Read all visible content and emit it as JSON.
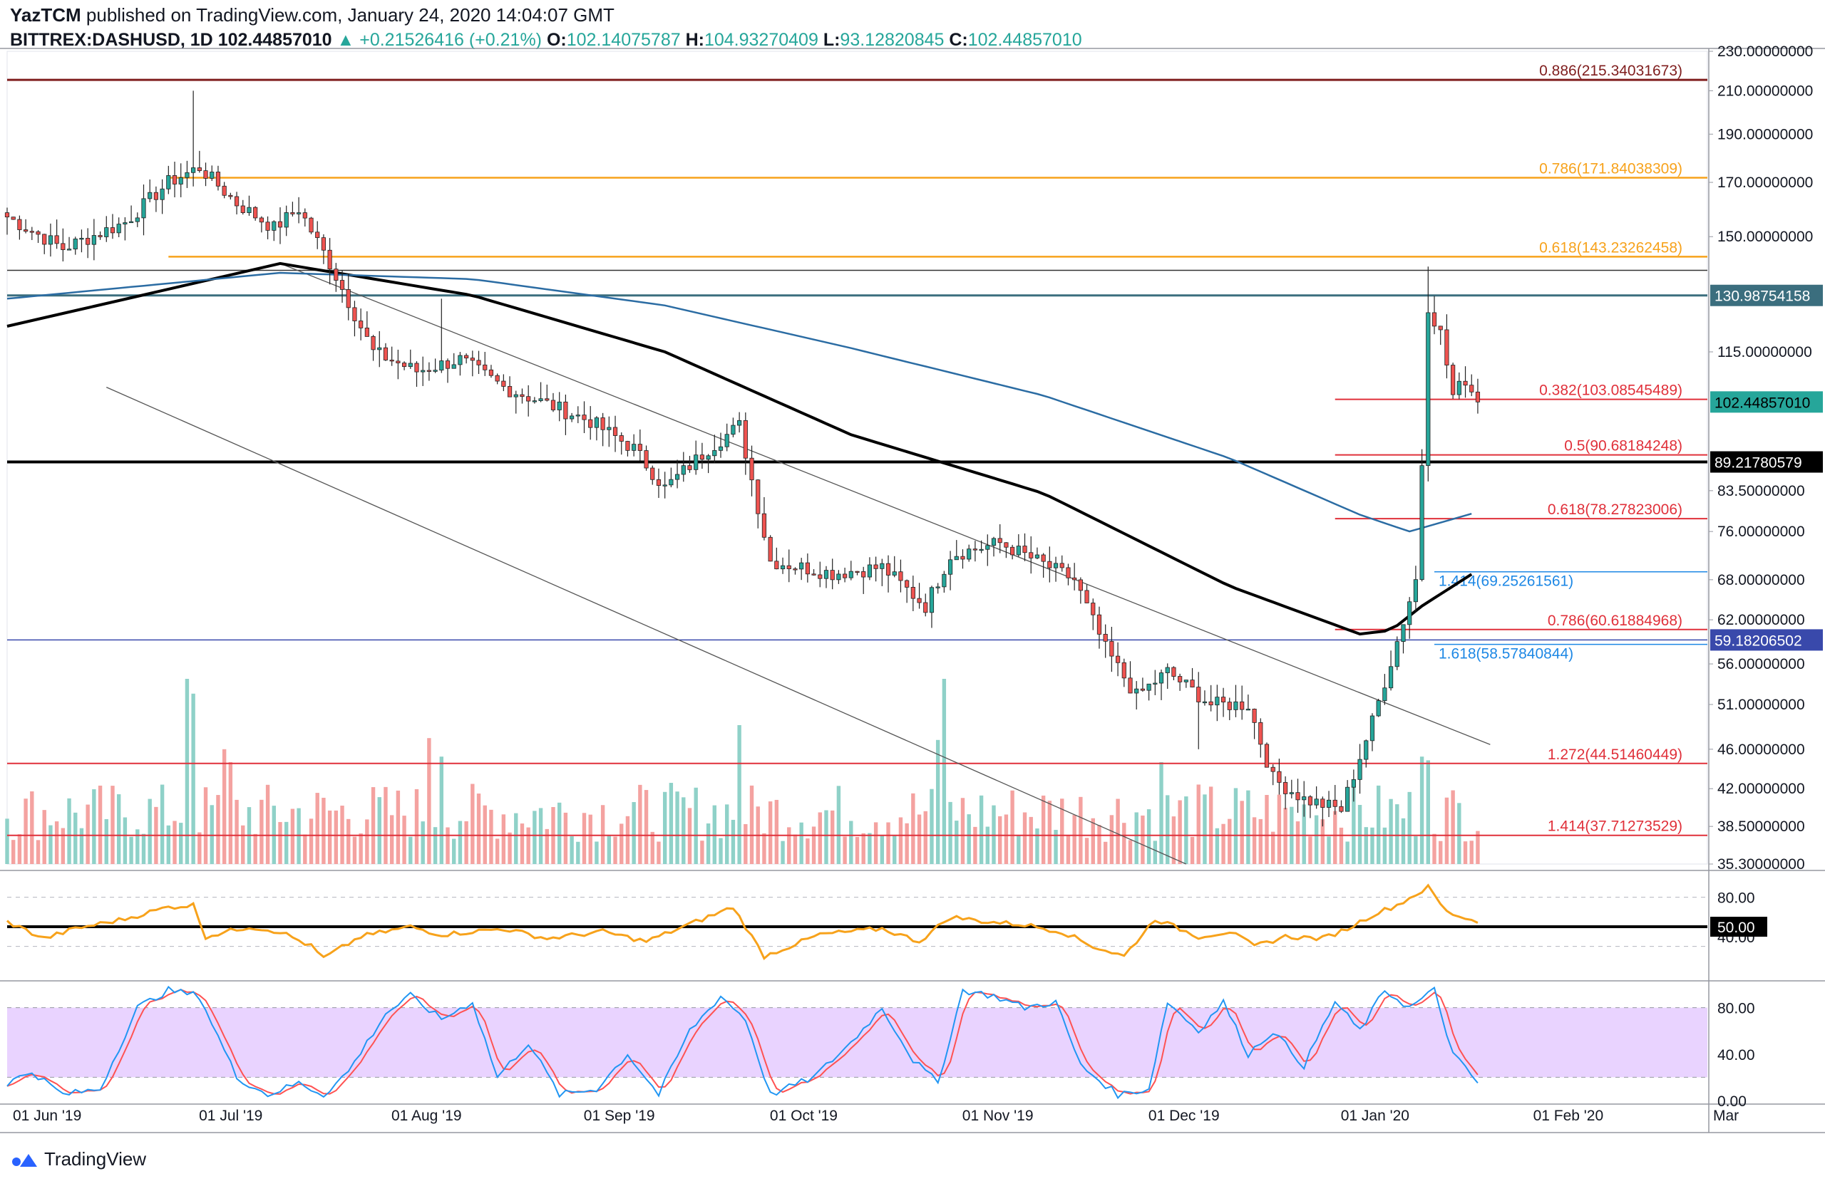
{
  "header": {
    "author": "YazTCM",
    "published_text": "published on TradingView.com, January 24, 2020 14:04:07 GMT",
    "symbol": "BITTREX:DASHUSD, 1D",
    "last": "102.44857010",
    "change": "▲ +0.21526416 (+0.21%)",
    "open_label": "O:",
    "open": "102.14075787",
    "high_label": "H:",
    "high": "104.93270409",
    "low_label": "L:",
    "low": "93.12820845",
    "close_label": "C:",
    "close": "102.44857010"
  },
  "footer": {
    "brand": "TradingView"
  },
  "colors": {
    "bull": "#26a69a",
    "bear": "#ef5350",
    "vol_bull": "#8fd1c8",
    "vol_bear": "#f4a2a0",
    "ma200": "#000000",
    "ma100": "#2b6ca3",
    "fib_dark": "#7f1d1d",
    "fib_orange": "#f7a21b",
    "fib_red": "#e0303a",
    "ext_blue": "#1e88e5",
    "rsi": "#f7a21b",
    "stoch_k": "#2196f3",
    "stoch_d": "#ff5252",
    "stoch_band": "#e1c4ff"
  },
  "chart_data": [
    {
      "type": "candlestick",
      "symbol": "BITTREX:DASHUSD",
      "interval": "1D",
      "scale": "log",
      "ylim": [
        35.3,
        230
      ],
      "x_range": [
        "2019-06-01",
        "2020-03-01"
      ],
      "x_tick_labels": [
        "01 Jun '19",
        "01 Jul '19",
        "01 Aug '19",
        "01 Sep '19",
        "01 Oct '19",
        "01 Nov '19",
        "01 Dec '19",
        "01 Jan '20",
        "01 Feb '20",
        "Mar"
      ],
      "y_tick_labels": [
        "230.00000000",
        "210.00000000",
        "190.00000000",
        "170.00000000",
        "150.00000000",
        "115.00000000",
        "83.50000000",
        "76.00000000",
        "68.00000000",
        "62.00000000",
        "56.00000000",
        "51.00000000",
        "46.00000000",
        "42.00000000",
        "38.50000000",
        "35.30000000"
      ],
      "price_tags": [
        {
          "value": "130.98754158",
          "style": "teal"
        },
        {
          "value": "102.44857010",
          "style": "green"
        },
        {
          "value": "89.21780579",
          "style": "black"
        },
        {
          "value": "59.18206502",
          "style": "blue"
        }
      ],
      "close_anchors": [
        [
          "2019-06-01",
          157
        ],
        [
          "2019-06-10",
          146
        ],
        [
          "2019-06-20",
          155
        ],
        [
          "2019-06-27",
          170
        ],
        [
          "2019-07-02",
          176
        ],
        [
          "2019-07-08",
          162
        ],
        [
          "2019-07-14",
          153
        ],
        [
          "2019-07-18",
          160
        ],
        [
          "2019-07-23",
          141
        ],
        [
          "2019-07-30",
          115
        ],
        [
          "2019-08-06",
          110
        ],
        [
          "2019-08-13",
          113
        ],
        [
          "2019-08-20",
          106
        ],
        [
          "2019-08-27",
          102
        ],
        [
          "2019-09-03",
          98
        ],
        [
          "2019-09-10",
          92
        ],
        [
          "2019-09-15",
          84
        ],
        [
          "2019-09-22",
          92
        ],
        [
          "2019-09-27",
          97
        ],
        [
          "2019-10-02",
          71
        ],
        [
          "2019-10-12",
          69
        ],
        [
          "2019-10-20",
          70
        ],
        [
          "2019-10-27",
          64
        ],
        [
          "2019-10-31",
          72
        ],
        [
          "2019-11-08",
          74
        ],
        [
          "2019-11-14",
          71
        ],
        [
          "2019-11-20",
          68
        ],
        [
          "2019-11-25",
          58
        ],
        [
          "2019-11-30",
          52
        ],
        [
          "2019-12-05",
          55
        ],
        [
          "2019-12-12",
          51
        ],
        [
          "2019-12-18",
          51
        ],
        [
          "2019-12-22",
          43
        ],
        [
          "2019-12-27",
          41
        ],
        [
          "2020-01-02",
          40
        ],
        [
          "2020-01-07",
          49
        ],
        [
          "2020-01-11",
          59
        ],
        [
          "2020-01-14",
          68
        ],
        [
          "2020-01-15",
          89
        ],
        [
          "2020-01-16",
          128
        ],
        [
          "2020-01-18",
          120
        ],
        [
          "2020-01-20",
          104
        ],
        [
          "2020-01-22",
          108
        ],
        [
          "2020-01-24",
          102.45
        ]
      ],
      "extremes": {
        "high": [
          [
            "2019-07-01",
            210
          ],
          [
            "2020-01-16",
            140
          ],
          [
            "2019-08-10",
            130
          ]
        ],
        "low": [
          [
            "2019-12-30",
            38.5
          ],
          [
            "2019-12-10",
            46
          ]
        ]
      },
      "moving_averages": [
        {
          "period": 200,
          "color": "ma200",
          "values": [
            [
              "2019-06-01",
              122
            ],
            [
              "2019-07-15",
              141
            ],
            [
              "2019-08-15",
              131
            ],
            [
              "2019-09-15",
              115
            ],
            [
              "2019-10-15",
              95
            ],
            [
              "2019-11-15",
              83
            ],
            [
              "2019-12-15",
              67
            ],
            [
              "2020-01-05",
              60
            ],
            [
              "2020-01-10",
              60.5
            ],
            [
              "2020-01-15",
              64
            ],
            [
              "2020-01-24",
              69.5
            ]
          ]
        },
        {
          "period": 100,
          "color": "ma100",
          "values": [
            [
              "2019-06-01",
              130
            ],
            [
              "2019-07-15",
              138
            ],
            [
              "2019-08-15",
              136
            ],
            [
              "2019-09-15",
              128
            ],
            [
              "2019-10-15",
              116
            ],
            [
              "2019-11-15",
              104
            ],
            [
              "2019-12-15",
              90
            ],
            [
              "2020-01-05",
              79
            ],
            [
              "2020-01-13",
              76
            ],
            [
              "2020-01-24",
              79.5
            ]
          ]
        }
      ],
      "trendlines": [
        {
          "from": [
            "2019-07-15",
            141
          ],
          "to": [
            "2020-01-26",
            46.5
          ]
        },
        {
          "from": [
            "2019-06-17",
            106
          ],
          "to": [
            "2019-12-08",
            35.3
          ]
        }
      ],
      "horizontal_levels": [
        {
          "label": "0.886",
          "price": 215.34031673,
          "text": "0.886(215.34031673)",
          "style": "fib_dark",
          "from": "2019-06-01"
        },
        {
          "label": "0.786",
          "price": 171.84038309,
          "text": "0.786(171.84038309)",
          "style": "fib_orange",
          "from": "2019-06-27"
        },
        {
          "label": "0.618",
          "price": 143.23262458,
          "text": "0.618(143.23262458)",
          "style": "fib_orange",
          "from": "2019-06-27"
        },
        {
          "label": "",
          "price": 138.8,
          "text": "",
          "style": "thin_black",
          "from": "2019-06-01"
        },
        {
          "label": "",
          "price": 130.98754158,
          "text": "",
          "style": "teal",
          "from": "2019-06-01"
        },
        {
          "label": "0.382",
          "price": 103.08545489,
          "text": "0.382(103.08545489)",
          "style": "fib_red",
          "from": "2020-01-01"
        },
        {
          "label": "0.5",
          "price": 90.68184248,
          "text": "0.5(90.68184248)",
          "style": "fib_red",
          "from": "2020-01-01"
        },
        {
          "label": "",
          "price": 89.21780579,
          "text": "",
          "style": "black",
          "from": "2019-06-01"
        },
        {
          "label": "0.618",
          "price": 78.27823006,
          "text": "0.618(78.27823006)",
          "style": "fib_red",
          "from": "2020-01-01"
        },
        {
          "label": "1.414",
          "price": 69.25261561,
          "text": "1.414(69.25261561)",
          "style": "ext_blue",
          "from": "2020-01-17"
        },
        {
          "label": "0.786",
          "price": 60.61884968,
          "text": "0.786(60.61884968)",
          "style": "fib_red",
          "from": "2020-01-01"
        },
        {
          "label": "",
          "price": 59.18206502,
          "text": "",
          "style": "blue",
          "from": "2019-06-01"
        },
        {
          "label": "1.618",
          "price": 58.57840844,
          "text": "1.618(58.57840844)",
          "style": "ext_blue",
          "from": "2020-01-17"
        },
        {
          "label": "1.272",
          "price": 44.51460449,
          "text": "1.272(44.51460449)",
          "style": "fib_red",
          "from": "2019-06-01"
        },
        {
          "label": "1.414",
          "price": 37.71273529,
          "text": "1.414(37.71273529)",
          "style": "fib_red",
          "from": "2019-06-01"
        }
      ],
      "volume_spikes": [
        [
          "2019-06-30",
          1.0
        ],
        [
          "2019-07-01",
          0.92
        ],
        [
          "2019-07-06",
          0.62
        ],
        [
          "2019-07-07",
          0.55
        ],
        [
          "2019-08-08",
          0.68
        ],
        [
          "2019-08-10",
          0.58
        ],
        [
          "2019-09-27",
          0.75
        ],
        [
          "2019-10-29",
          0.67
        ],
        [
          "2019-10-30",
          1.0
        ],
        [
          "2019-12-04",
          0.55
        ],
        [
          "2020-01-15",
          0.58
        ],
        [
          "2020-01-16",
          0.56
        ]
      ]
    },
    {
      "type": "line",
      "name": "RSI",
      "ylim": [
        0,
        100
      ],
      "y_tick_labels": [
        "80.00",
        "40.00"
      ],
      "level_tag": "50.00",
      "reference_levels": [
        80,
        50,
        30
      ],
      "anchors": [
        [
          "2019-06-01",
          55
        ],
        [
          "2019-06-07",
          38
        ],
        [
          "2019-06-12",
          48
        ],
        [
          "2019-06-20",
          58
        ],
        [
          "2019-06-27",
          70
        ],
        [
          "2019-07-01",
          72
        ],
        [
          "2019-07-03",
          40
        ],
        [
          "2019-07-10",
          50
        ],
        [
          "2019-07-15",
          45
        ],
        [
          "2019-07-20",
          30
        ],
        [
          "2019-07-22",
          18
        ],
        [
          "2019-07-28",
          40
        ],
        [
          "2019-08-05",
          50
        ],
        [
          "2019-08-10",
          42
        ],
        [
          "2019-08-20",
          48
        ],
        [
          "2019-08-27",
          38
        ],
        [
          "2019-09-05",
          45
        ],
        [
          "2019-09-12",
          35
        ],
        [
          "2019-09-20",
          55
        ],
        [
          "2019-09-26",
          70
        ],
        [
          "2019-10-01",
          20
        ],
        [
          "2019-10-10",
          42
        ],
        [
          "2019-10-20",
          48
        ],
        [
          "2019-10-26",
          35
        ],
        [
          "2019-10-31",
          60
        ],
        [
          "2019-11-06",
          55
        ],
        [
          "2019-11-12",
          52
        ],
        [
          "2019-11-18",
          45
        ],
        [
          "2019-11-23",
          30
        ],
        [
          "2019-11-28",
          20
        ],
        [
          "2019-12-03",
          58
        ],
        [
          "2019-12-10",
          40
        ],
        [
          "2019-12-15",
          45
        ],
        [
          "2019-12-19",
          30
        ],
        [
          "2019-12-24",
          40
        ],
        [
          "2019-12-30",
          38
        ],
        [
          "2020-01-03",
          48
        ],
        [
          "2020-01-07",
          62
        ],
        [
          "2020-01-11",
          72
        ],
        [
          "2020-01-16",
          90
        ],
        [
          "2020-01-19",
          65
        ],
        [
          "2020-01-24",
          55
        ]
      ]
    },
    {
      "type": "line",
      "name": "Stoch RSI",
      "ylim": [
        0,
        100
      ],
      "y_tick_labels": [
        "80.00",
        "40.00",
        "0.00"
      ],
      "band": [
        20,
        80
      ],
      "anchors": [
        [
          "2019-06-01",
          15
        ],
        [
          "2019-06-05",
          25
        ],
        [
          "2019-06-10",
          5
        ],
        [
          "2019-06-16",
          10
        ],
        [
          "2019-06-22",
          80
        ],
        [
          "2019-06-27",
          95
        ],
        [
          "2019-07-02",
          90
        ],
        [
          "2019-07-08",
          20
        ],
        [
          "2019-07-13",
          5
        ],
        [
          "2019-07-18",
          15
        ],
        [
          "2019-07-22",
          5
        ],
        [
          "2019-07-26",
          25
        ],
        [
          "2019-08-01",
          75
        ],
        [
          "2019-08-05",
          90
        ],
        [
          "2019-08-10",
          70
        ],
        [
          "2019-08-15",
          85
        ],
        [
          "2019-08-19",
          20
        ],
        [
          "2019-08-24",
          50
        ],
        [
          "2019-08-29",
          5
        ],
        [
          "2019-09-04",
          10
        ],
        [
          "2019-09-09",
          40
        ],
        [
          "2019-09-14",
          5
        ],
        [
          "2019-09-19",
          60
        ],
        [
          "2019-09-24",
          90
        ],
        [
          "2019-09-28",
          70
        ],
        [
          "2019-10-02",
          5
        ],
        [
          "2019-10-09",
          20
        ],
        [
          "2019-10-15",
          50
        ],
        [
          "2019-10-20",
          80
        ],
        [
          "2019-10-25",
          35
        ],
        [
          "2019-10-29",
          15
        ],
        [
          "2019-11-02",
          95
        ],
        [
          "2019-11-07",
          90
        ],
        [
          "2019-11-12",
          80
        ],
        [
          "2019-11-17",
          85
        ],
        [
          "2019-11-21",
          30
        ],
        [
          "2019-11-27",
          5
        ],
        [
          "2019-12-02",
          10
        ],
        [
          "2019-12-05",
          85
        ],
        [
          "2019-12-10",
          60
        ],
        [
          "2019-12-14",
          85
        ],
        [
          "2019-12-18",
          40
        ],
        [
          "2019-12-22",
          60
        ],
        [
          "2019-12-27",
          30
        ],
        [
          "2020-01-01",
          85
        ],
        [
          "2020-01-05",
          60
        ],
        [
          "2020-01-09",
          95
        ],
        [
          "2020-01-13",
          80
        ],
        [
          "2020-01-17",
          95
        ],
        [
          "2020-01-20",
          40
        ],
        [
          "2020-01-24",
          15
        ]
      ]
    }
  ]
}
